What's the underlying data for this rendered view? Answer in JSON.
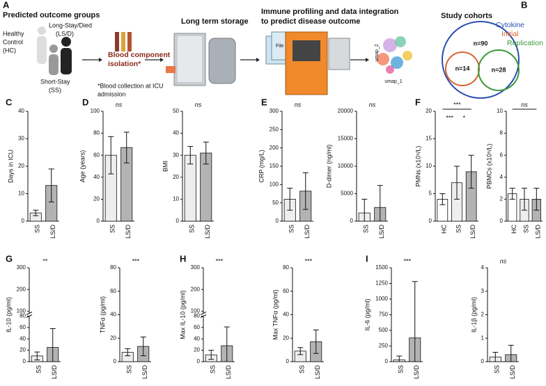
{
  "panel_a": {
    "label": "A",
    "groups_title": "Predicted outcome groups",
    "hc": [
      "Healthy",
      "Control",
      "(HC)"
    ],
    "lsd": [
      "Long-Stay/Died",
      "(LS/D)"
    ],
    "ss": [
      "Short-Stay",
      "(SS)"
    ],
    "isolation": [
      "Blood component",
      "isolation*"
    ],
    "collection_note": [
      "*Blood collection at ICU",
      "admission"
    ],
    "storage": "Long term storage",
    "profiling": [
      "Immune profiling and data integration",
      "to predict disease outcome"
    ],
    "file": "File",
    "umap_y": "umap_2",
    "umap_x": "umap_1"
  },
  "panel_b": {
    "label": "B",
    "title": "Study cohorts",
    "cytokine": "Cytokine",
    "initial": "Initial",
    "replication": "Replication",
    "n_all": "n=90",
    "n_initial": "n=14",
    "n_replication": "n=28"
  },
  "chart_data": [
    {
      "type": "bar",
      "panel": "C",
      "ylabel": "Days in ICU",
      "categories": [
        "SS",
        "LS/D"
      ],
      "values": [
        3,
        13
      ],
      "errors": [
        1,
        6
      ],
      "colors": [
        "#eeeeee",
        "#b3b3b3"
      ],
      "ylim": [
        0,
        40
      ],
      "yticks": [
        0,
        10,
        20,
        30,
        40
      ],
      "annotations": []
    },
    {
      "type": "bar",
      "panel": "D",
      "ylabel": "Age (years)",
      "categories": [
        "SS",
        "LS/D"
      ],
      "values": [
        60,
        67
      ],
      "errors": [
        17,
        14
      ],
      "colors": [
        "#eeeeee",
        "#b3b3b3"
      ],
      "ylim": [
        0,
        100
      ],
      "yticks": [
        0,
        20,
        40,
        60,
        80,
        100
      ],
      "annotations": [
        "ns"
      ]
    },
    {
      "type": "bar",
      "ylabel": "BMI",
      "categories": [
        "SS",
        "LS/D"
      ],
      "values": [
        30,
        31
      ],
      "errors": [
        4,
        5
      ],
      "colors": [
        "#eeeeee",
        "#b3b3b3"
      ],
      "ylim": [
        0,
        50
      ],
      "yticks": [
        0,
        10,
        20,
        30,
        40,
        50
      ],
      "annotations": [
        "ns"
      ]
    },
    {
      "type": "bar",
      "panel": "E",
      "ylabel": "CRP (mg/L)",
      "categories": [
        "SS",
        "LS/D"
      ],
      "values": [
        60,
        82
      ],
      "errors": [
        30,
        50
      ],
      "colors": [
        "#eeeeee",
        "#b3b3b3"
      ],
      "ylim": [
        0,
        300
      ],
      "yticks": [
        0,
        50,
        100,
        150,
        200,
        250,
        300
      ],
      "annotations": [
        "ns"
      ]
    },
    {
      "type": "bar",
      "ylabel": "D-dimer (ng/ml)",
      "categories": [
        "SS",
        "LS/D"
      ],
      "values": [
        1500,
        2500
      ],
      "errors": [
        2500,
        4000
      ],
      "colors": [
        "#eeeeee",
        "#b3b3b3"
      ],
      "ylim": [
        0,
        20000
      ],
      "yticks": [
        0,
        5000,
        10000,
        15000,
        20000
      ],
      "annotations": [
        "ns"
      ]
    },
    {
      "type": "bar",
      "panel": "F",
      "ylabel": "PMNs (x10⁹/L)",
      "categories": [
        "HC",
        "SS",
        "LS/D"
      ],
      "values": [
        4,
        7,
        9
      ],
      "errors": [
        1,
        3,
        3
      ],
      "colors": [
        "#ffffff",
        "#eeeeee",
        "#b3b3b3"
      ],
      "ylim": [
        0,
        20
      ],
      "yticks": [
        0,
        5,
        10,
        15,
        20
      ],
      "annotations": [
        "***",
        "***",
        "*"
      ]
    },
    {
      "type": "bar",
      "ylabel": "PBMCs (x10⁹/L)",
      "categories": [
        "HC",
        "SS",
        "LS/D"
      ],
      "values": [
        2.5,
        2,
        2
      ],
      "errors": [
        0.5,
        1,
        1
      ],
      "colors": [
        "#ffffff",
        "#eeeeee",
        "#b3b3b3"
      ],
      "ylim": [
        0,
        10
      ],
      "yticks": [
        0,
        2,
        4,
        6,
        8,
        10
      ],
      "annotations": [
        "ns"
      ]
    },
    {
      "type": "bar",
      "panel": "G",
      "ylabel": "IL-10 (pg/ml)",
      "categories": [
        "SS",
        "LS/D"
      ],
      "values": [
        10,
        25
      ],
      "errors": [
        7,
        33
      ],
      "colors": [
        "#eeeeee",
        "#b3b3b3"
      ],
      "ylim": [
        0,
        300
      ],
      "ybreak": [
        80,
        90
      ],
      "yticks": [
        0,
        20,
        40,
        60,
        80,
        100,
        200,
        300
      ],
      "annotations": [
        "**"
      ]
    },
    {
      "type": "bar",
      "ylabel": "TNFα (pg/ml)",
      "categories": [
        "SS",
        "LS/D"
      ],
      "values": [
        8,
        13
      ],
      "errors": [
        3,
        8
      ],
      "colors": [
        "#eeeeee",
        "#b3b3b3"
      ],
      "ylim": [
        0,
        80
      ],
      "yticks": [
        0,
        20,
        40,
        60,
        80
      ],
      "annotations": [
        "***"
      ]
    },
    {
      "type": "bar",
      "panel": "H",
      "ylabel": "Max IL-10 (pg/ml)",
      "categories": [
        "SS",
        "LS/D"
      ],
      "values": [
        12,
        28
      ],
      "errors": [
        8,
        33
      ],
      "colors": [
        "#eeeeee",
        "#b3b3b3"
      ],
      "ylim": [
        0,
        300
      ],
      "ybreak": [
        80,
        90
      ],
      "yticks": [
        0,
        20,
        40,
        60,
        80,
        100,
        200,
        300
      ],
      "annotations": [
        "***"
      ]
    },
    {
      "type": "bar",
      "ylabel": "Max TNFα (pg/ml)",
      "categories": [
        "SS",
        "LS/D"
      ],
      "values": [
        9,
        17
      ],
      "errors": [
        3,
        10
      ],
      "colors": [
        "#eeeeee",
        "#b3b3b3"
      ],
      "ylim": [
        0,
        80
      ],
      "yticks": [
        0,
        20,
        40,
        60,
        80
      ],
      "annotations": [
        "***"
      ]
    },
    {
      "type": "bar",
      "panel": "I",
      "ylabel": "IL-6 (pg/ml)",
      "categories": [
        "SS",
        "LS/D"
      ],
      "values": [
        30,
        380
      ],
      "errors": [
        60,
        900
      ],
      "colors": [
        "#eeeeee",
        "#b3b3b3"
      ],
      "ylim": [
        0,
        1500
      ],
      "yticks": [
        0,
        250,
        500,
        750,
        1000,
        1250,
        1500
      ],
      "annotations": [
        "***"
      ]
    },
    {
      "type": "bar",
      "ylabel": "IL-1β (pg/ml)",
      "categories": [
        "SS",
        "LS/D"
      ],
      "values": [
        0.2,
        0.3
      ],
      "errors": [
        0.2,
        0.4
      ],
      "colors": [
        "#eeeeee",
        "#b3b3b3"
      ],
      "ylim": [
        0,
        4
      ],
      "yticks": [
        0,
        1,
        2,
        3,
        4
      ],
      "annotations": [
        "ns"
      ]
    }
  ]
}
